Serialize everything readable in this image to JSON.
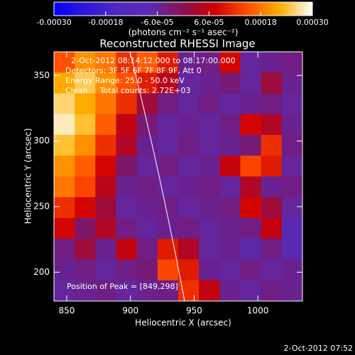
{
  "chart_data": {
    "type": "heatmap",
    "title": "Reconstructed RHESSI Image",
    "xlabel": "Heliocentric X (arcsec)",
    "ylabel": "Heliocentric Y (arcsec)",
    "annotations": [
      "2-Oct-2012 08:14:12.000 to 08:17:00.000",
      "Detectors: 3F 5F 6F 7F 8F 9F, Att 0",
      "Energy Range: 25.0 - 50.0 keV",
      "Clean     Total counts: 2.72E+03"
    ],
    "peak_label": "Position of Peak = [849,298]",
    "timestamp": "2-Oct-2012 07:52",
    "xlim": [
      840,
      1035
    ],
    "ylim": [
      178,
      368
    ],
    "xticks": [
      850,
      900,
      950,
      1000
    ],
    "yticks": [
      200,
      250,
      300,
      350
    ],
    "colorbar": {
      "label": "(photons cm⁻² s⁻¹ asec⁻²)",
      "lim": [
        -0.0003,
        0.0003
      ],
      "ticks": [
        {
          "value": -0.0003,
          "label": "-0.00030"
        },
        {
          "value": -0.00018,
          "label": "-0.00018"
        },
        {
          "value": -6e-05,
          "label": "-6.0e-05"
        },
        {
          "value": 6e-05,
          "label": "6.0e-05"
        },
        {
          "value": 0.00018,
          "label": "0.00018"
        },
        {
          "value": 0.0003,
          "label": "0.00030"
        }
      ],
      "colormap": [
        "#0000ff",
        "#3018d8",
        "#5028c0",
        "#5a2ab0",
        "#8a1050",
        "#d00000",
        "#ff5000",
        "#ffb000",
        "#ffffff"
      ]
    },
    "z": [
      [
        0.00015,
        0.0002,
        0.00018,
        0.00012,
        0.00016,
        0.0001,
        -5e-05,
        -4e-05,
        8e-05,
        -6e-05,
        -5e-05,
        -4e-05
      ],
      [
        0.00022,
        0.00025,
        0.0002,
        0.00015,
        0.0001,
        5e-05,
        -6e-05,
        -5e-05,
        -3e-05,
        -6e-05,
        2e-05,
        -5e-05
      ],
      [
        0.00026,
        0.00022,
        0.00018,
        0.00012,
        2e-05,
        -4e-05,
        -6e-05,
        -4e-05,
        -6e-05,
        -5e-05,
        -4e-05,
        -6e-05
      ],
      [
        0.00028,
        0.00024,
        0.00016,
        6e-05,
        -3e-05,
        -6e-05,
        -5e-05,
        -6e-05,
        -4e-05,
        8e-05,
        4e-05,
        -5e-05
      ],
      [
        0.00024,
        0.0002,
        0.00012,
        4e-05,
        -5e-05,
        -6e-05,
        -4e-05,
        -6e-05,
        -5e-05,
        -3e-05,
        0.00012,
        -4e-05
      ],
      [
        0.0002,
        0.00016,
        8e-05,
        -2e-05,
        -6e-05,
        -4e-05,
        -6e-05,
        -5e-05,
        6e-05,
        0.00014,
        0.0001,
        -6e-05
      ],
      [
        0.00018,
        0.00014,
        5e-05,
        -5e-05,
        -4e-05,
        -6e-05,
        -5e-05,
        -4e-05,
        -6e-05,
        4e-05,
        -5e-05,
        -4e-05
      ],
      [
        0.00012,
        8e-05,
        2e-05,
        -6e-05,
        -5e-05,
        -4e-05,
        -6e-05,
        -5e-05,
        -4e-05,
        8e-05,
        2e-05,
        -6e-05
      ],
      [
        8e-05,
        -2e-05,
        4e-05,
        -4e-05,
        -6e-05,
        -5e-05,
        -4e-05,
        -6e-05,
        -5e-05,
        -4e-05,
        6e-05,
        -8e-05
      ],
      [
        -4e-05,
        2e-05,
        -5e-05,
        6e-05,
        -4e-05,
        0.0001,
        4e-05,
        -6e-05,
        -5e-05,
        -7e-05,
        -4e-05,
        -8e-05
      ],
      [
        -5e-05,
        -4e-05,
        -6e-05,
        -4e-05,
        -3e-05,
        0.00014,
        0.0001,
        -5e-05,
        -6e-05,
        -4e-05,
        -6e-05,
        -5e-05
      ],
      [
        -6e-05,
        -5e-05,
        -4e-05,
        -6e-05,
        -5e-05,
        -4e-05,
        0.00012,
        6e-05,
        -5e-05,
        -6e-05,
        -4e-05,
        -5e-05
      ]
    ]
  }
}
